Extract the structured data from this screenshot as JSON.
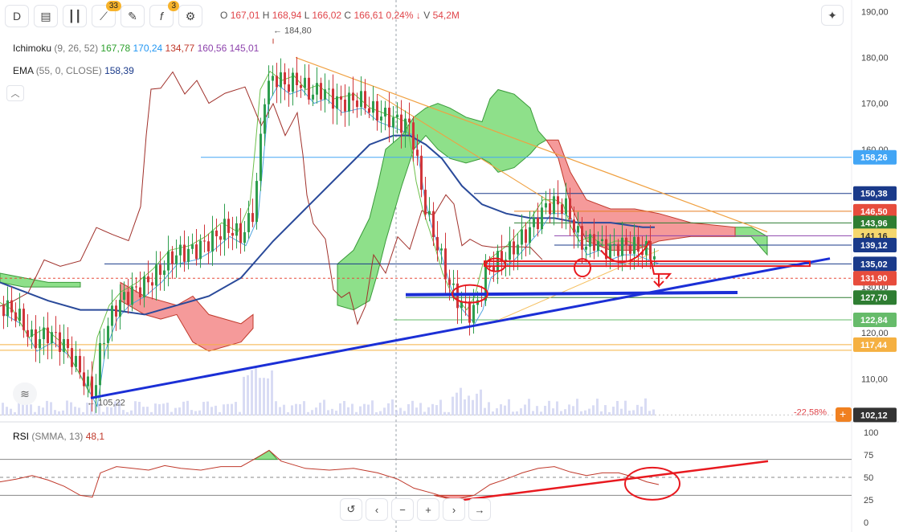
{
  "toolbar": {
    "timeframe": "D",
    "indicators_badge": "33",
    "functions_badge": "3",
    "icons": [
      "calendar-bar-icon",
      "candles-icon",
      "indicators-icon",
      "drawing-icon",
      "functions-icon",
      "settings-sliders-icon"
    ]
  },
  "ohlc": {
    "o_label": "O",
    "o": "167,01",
    "h_label": "H",
    "h": "168,94",
    "l_label": "L",
    "l": "166,02",
    "c_label": "C",
    "c": "166,61",
    "change": "0,24%",
    "v_label": "V",
    "v": "54,2M"
  },
  "indicators": {
    "ichimoku_name": "Ichimoku",
    "ichimoku_params": "(9, 26, 52)",
    "ichimoku_values": [
      "167,78",
      "170,24",
      "134,77",
      "160,56",
      "145,01"
    ],
    "ichimoku_colors": [
      "#2ca02c",
      "#2196f3",
      "#c0392b",
      "#8e44ad",
      "#8e44ad"
    ],
    "ema_name": "EMA",
    "ema_params": "(55, 0, CLOSE)",
    "ema_value": "158,39",
    "rsi_name": "RSI",
    "rsi_params": "(SMMA, 13)",
    "rsi_value": "48,1"
  },
  "chart_data": {
    "type": "candlestick",
    "y_axis_ticks": [
      190,
      180,
      170,
      160,
      150,
      140,
      130,
      120,
      110
    ],
    "y_axis_tick_labels": [
      "190,00",
      "180,00",
      "170,00",
      "160,00",
      "150,00",
      "140,00",
      "130,00",
      "120,00",
      "110,00"
    ],
    "ylim": [
      102,
      192
    ],
    "annotations": {
      "high_marker": "184,80",
      "low_marker": "105,22",
      "percent_change": "-22,58%"
    },
    "price_labels": [
      {
        "value": 158.26,
        "text": "158,26",
        "color": "#42a5f5"
      },
      {
        "value": 150.38,
        "text": "150,38",
        "color": "#1a3a8a"
      },
      {
        "value": 146.5,
        "text": "146,50",
        "color": "#e74c3c"
      },
      {
        "value": 143.96,
        "text": "143,96",
        "color": "#2e7d32"
      },
      {
        "value": 141.16,
        "text": "141,16",
        "color": "#f5d76e"
      },
      {
        "value": 139.12,
        "text": "139,12",
        "color": "#1a3a8a"
      },
      {
        "value": 135.02,
        "text": "135,02",
        "color": "#1a3a8a"
      },
      {
        "value": 131.9,
        "text": "131,90",
        "color": "#e74c3c"
      },
      {
        "value": 127.7,
        "text": "127,70",
        "color": "#2e7d32"
      },
      {
        "value": 122.84,
        "text": "122,84",
        "color": "#66bb6a"
      },
      {
        "value": 117.44,
        "text": "117,44",
        "color": "#f5b041"
      },
      {
        "value": 102.12,
        "text": "102,12",
        "color": "#333333"
      }
    ],
    "horizontal_levels": [
      {
        "value": 158.26,
        "color": "#42a5f5",
        "x_from": 250
      },
      {
        "value": 150.38,
        "color": "#1a3a8a",
        "x_from": 590
      },
      {
        "value": 146.5,
        "color": "#e67e22",
        "x_from": 640
      },
      {
        "value": 143.96,
        "color": "#2e7d32",
        "x_from": 640
      },
      {
        "value": 141.16,
        "color": "#8e44ad",
        "x_from": 690
      },
      {
        "value": 139.12,
        "color": "#1a3a8a",
        "x_from": 690
      },
      {
        "value": 135.02,
        "color": "#1a3a8a",
        "x_from": 130
      },
      {
        "value": 131.9,
        "color": "#e74c3c",
        "x_from": 0,
        "dashed": true
      },
      {
        "value": 127.7,
        "color": "#2e7d32",
        "x_from": 505
      },
      {
        "value": 122.84,
        "color": "#66bb6a",
        "x_from": 490
      },
      {
        "value": 117.44,
        "color": "#f5b041",
        "x_from": 0
      },
      {
        "value": 116.2,
        "color": "#f5b041",
        "x_from": 0
      }
    ],
    "close_path": [
      [
        0,
        126
      ],
      [
        20,
        124
      ],
      [
        40,
        118
      ],
      [
        60,
        120
      ],
      [
        80,
        117
      ],
      [
        100,
        111
      ],
      [
        115,
        106
      ],
      [
        125,
        118
      ],
      [
        140,
        125
      ],
      [
        155,
        128
      ],
      [
        175,
        130
      ],
      [
        195,
        133
      ],
      [
        215,
        137
      ],
      [
        240,
        138
      ],
      [
        260,
        140
      ],
      [
        280,
        143
      ],
      [
        300,
        141
      ],
      [
        315,
        147
      ],
      [
        322,
        160
      ],
      [
        328,
        172
      ],
      [
        340,
        176
      ],
      [
        355,
        174
      ],
      [
        370,
        175
      ],
      [
        385,
        172
      ],
      [
        400,
        173
      ],
      [
        420,
        170
      ],
      [
        445,
        171
      ],
      [
        465,
        168
      ],
      [
        480,
        167
      ],
      [
        495,
        166
      ],
      [
        510,
        165
      ],
      [
        517,
        158
      ],
      [
        522,
        152
      ],
      [
        530,
        146
      ],
      [
        545,
        138
      ],
      [
        555,
        132
      ],
      [
        565,
        128
      ],
      [
        575,
        126
      ],
      [
        585,
        124
      ],
      [
        595,
        127
      ],
      [
        605,
        134
      ],
      [
        620,
        136
      ],
      [
        635,
        138
      ],
      [
        650,
        141
      ],
      [
        665,
        144
      ],
      [
        680,
        148
      ],
      [
        695,
        148
      ],
      [
        705,
        147
      ],
      [
        715,
        142
      ],
      [
        725,
        139
      ],
      [
        740,
        140
      ],
      [
        755,
        138
      ],
      [
        770,
        139
      ],
      [
        785,
        139
      ],
      [
        800,
        138
      ],
      [
        815,
        137
      ]
    ],
    "ema_path": [
      [
        0,
        131
      ],
      [
        30,
        129
      ],
      [
        60,
        127
      ],
      [
        100,
        125
      ],
      [
        140,
        125
      ],
      [
        180,
        124
      ],
      [
        220,
        126
      ],
      [
        260,
        128
      ],
      [
        300,
        132
      ],
      [
        340,
        140
      ],
      [
        380,
        147
      ],
      [
        420,
        154
      ],
      [
        460,
        161
      ],
      [
        490,
        163
      ],
      [
        510,
        163
      ],
      [
        530,
        161
      ],
      [
        550,
        158
      ],
      [
        575,
        152
      ],
      [
        600,
        148
      ],
      [
        630,
        146
      ],
      [
        660,
        145
      ],
      [
        690,
        145
      ],
      [
        720,
        144
      ],
      [
        760,
        144
      ],
      [
        800,
        143
      ],
      [
        815,
        143
      ]
    ],
    "kumo_green": [
      {
        "top": [
          [
            0,
            133
          ],
          [
            30,
            132
          ],
          [
            60,
            131
          ],
          [
            80,
            131
          ],
          [
            100,
            131
          ]
        ],
        "bot": [
          [
            0,
            131
          ],
          [
            30,
            130
          ],
          [
            60,
            130
          ],
          [
            80,
            130
          ],
          [
            100,
            130
          ]
        ]
      },
      {
        "top": [
          [
            420,
            135
          ],
          [
            440,
            138
          ],
          [
            460,
            145
          ],
          [
            470,
            152
          ],
          [
            480,
            160
          ],
          [
            500,
            163
          ],
          [
            515,
            167
          ],
          [
            530,
            169
          ],
          [
            545,
            170
          ],
          [
            560,
            169
          ],
          [
            580,
            167
          ],
          [
            600,
            166
          ],
          [
            610,
            171
          ],
          [
            620,
            173
          ],
          [
            640,
            172
          ],
          [
            660,
            169
          ],
          [
            670,
            164
          ],
          [
            680,
            162
          ]
        ],
        "bot": [
          [
            420,
            126
          ],
          [
            440,
            125
          ],
          [
            460,
            127
          ],
          [
            470,
            133
          ],
          [
            480,
            140
          ],
          [
            500,
            152
          ],
          [
            515,
            160
          ],
          [
            530,
            163
          ],
          [
            545,
            160
          ],
          [
            560,
            158
          ],
          [
            580,
            157
          ],
          [
            600,
            158
          ],
          [
            610,
            157
          ],
          [
            620,
            155
          ],
          [
            640,
            156
          ],
          [
            660,
            159
          ],
          [
            670,
            161
          ],
          [
            680,
            162
          ]
        ]
      },
      {
        "top": [
          [
            915,
            143
          ],
          [
            935,
            143
          ],
          [
            955,
            141
          ]
        ],
        "bot": [
          [
            915,
            141
          ],
          [
            935,
            141
          ],
          [
            955,
            137
          ]
        ]
      }
    ],
    "kumo_red": [
      {
        "top": [
          [
            150,
            131
          ],
          [
            180,
            128
          ],
          [
            200,
            127
          ],
          [
            220,
            126
          ],
          [
            240,
            128
          ],
          [
            260,
            124
          ],
          [
            300,
            122
          ],
          [
            315,
            124
          ]
        ],
        "bot": [
          [
            150,
            127
          ],
          [
            180,
            124
          ],
          [
            200,
            123
          ],
          [
            220,
            124
          ],
          [
            240,
            118
          ],
          [
            260,
            116
          ],
          [
            300,
            118
          ],
          [
            315,
            121
          ]
        ]
      },
      {
        "top": [
          [
            680,
            162
          ],
          [
            695,
            162
          ],
          [
            710,
            155
          ],
          [
            730,
            149
          ],
          [
            760,
            147
          ],
          [
            790,
            147
          ],
          [
            820,
            146
          ],
          [
            860,
            144
          ],
          [
            915,
            143
          ]
        ],
        "bot": [
          [
            680,
            162
          ],
          [
            695,
            158
          ],
          [
            710,
            148
          ],
          [
            730,
            140
          ],
          [
            760,
            138
          ],
          [
            790,
            138
          ],
          [
            820,
            140
          ],
          [
            860,
            141
          ],
          [
            915,
            141
          ]
        ]
      }
    ],
    "volume_max": 60,
    "rsi": {
      "ylim": [
        0,
        100
      ],
      "ticks": [
        100,
        75,
        50,
        25,
        0
      ],
      "levels": [
        70,
        50,
        30
      ],
      "series": [
        [
          0,
          45
        ],
        [
          20,
          48
        ],
        [
          40,
          52
        ],
        [
          60,
          47
        ],
        [
          80,
          40
        ],
        [
          100,
          30
        ],
        [
          115,
          28
        ],
        [
          125,
          55
        ],
        [
          145,
          62
        ],
        [
          165,
          60
        ],
        [
          185,
          58
        ],
        [
          205,
          63
        ],
        [
          225,
          60
        ],
        [
          250,
          58
        ],
        [
          275,
          62
        ],
        [
          300,
          62
        ],
        [
          320,
          72
        ],
        [
          335,
          80
        ],
        [
          350,
          68
        ],
        [
          380,
          60
        ],
        [
          410,
          58
        ],
        [
          440,
          60
        ],
        [
          470,
          55
        ],
        [
          495,
          48
        ],
        [
          515,
          38
        ],
        [
          540,
          32
        ],
        [
          565,
          25
        ],
        [
          590,
          30
        ],
        [
          610,
          42
        ],
        [
          630,
          48
        ],
        [
          650,
          55
        ],
        [
          670,
          60
        ],
        [
          690,
          62
        ],
        [
          710,
          56
        ],
        [
          730,
          52
        ],
        [
          750,
          55
        ],
        [
          770,
          55
        ],
        [
          790,
          50
        ],
        [
          805,
          45
        ],
        [
          820,
          42
        ]
      ]
    }
  },
  "nav": {
    "icons": [
      "reset-icon",
      "scroll-left-icon",
      "zoom-out-icon",
      "zoom-in-icon",
      "scroll-right-icon",
      "go-latest-icon"
    ]
  }
}
